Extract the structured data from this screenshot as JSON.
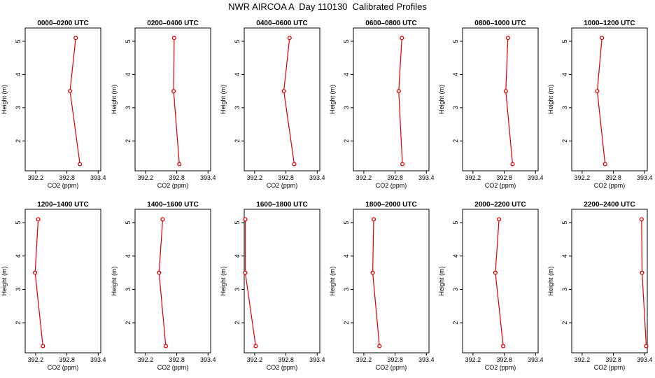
{
  "page": {
    "title": "NWR AIRCOA A  Day 110130  Calibrated Profiles"
  },
  "colors": {
    "series": "#dd0000",
    "axis": "#000000",
    "background": "#ffffff"
  },
  "chart_data": [
    {
      "type": "line",
      "title": "0000–0200 UTC",
      "xlabel": "CO2 (ppm)",
      "ylabel": "Height (m)",
      "xlim": [
        392.0,
        393.45
      ],
      "ylim": [
        1.1,
        5.4
      ],
      "xticks": [
        "392.2",
        "392.8",
        "393.4"
      ],
      "xtick_values": [
        392.2,
        392.8,
        393.4
      ],
      "yticks": [
        "2",
        "3",
        "4",
        "5"
      ],
      "ytick_values": [
        2,
        3,
        4,
        5
      ],
      "series": [
        {
          "x": [
            392.97,
            392.86,
            393.05
          ],
          "y": [
            5.1,
            3.5,
            1.3
          ]
        }
      ]
    },
    {
      "type": "line",
      "title": "0200–0400 UTC",
      "xlabel": "CO2 (ppm)",
      "ylabel": "Height (m)",
      "xlim": [
        392.0,
        393.45
      ],
      "ylim": [
        1.1,
        5.4
      ],
      "xticks": [
        "392.2",
        "392.8",
        "393.4"
      ],
      "xtick_values": [
        392.2,
        392.8,
        393.4
      ],
      "yticks": [
        "2",
        "3",
        "4",
        "5"
      ],
      "ytick_values": [
        2,
        3,
        4,
        5
      ],
      "series": [
        {
          "x": [
            392.75,
            392.74,
            392.85
          ],
          "y": [
            5.1,
            3.5,
            1.3
          ]
        }
      ]
    },
    {
      "type": "line",
      "title": "0400–0600 UTC",
      "xlabel": "CO2 (ppm)",
      "ylabel": "Height (m)",
      "xlim": [
        392.0,
        393.45
      ],
      "ylim": [
        1.1,
        5.4
      ],
      "xticks": [
        "392.2",
        "392.8",
        "393.4"
      ],
      "xtick_values": [
        392.2,
        392.8,
        393.4
      ],
      "yticks": [
        "2",
        "3",
        "4",
        "5"
      ],
      "ytick_values": [
        2,
        3,
        4,
        5
      ],
      "series": [
        {
          "x": [
            392.87,
            392.76,
            392.96
          ],
          "y": [
            5.1,
            3.5,
            1.3
          ]
        }
      ]
    },
    {
      "type": "line",
      "title": "0600–0800 UTC",
      "xlabel": "CO2 (ppm)",
      "ylabel": "Height (m)",
      "xlim": [
        392.0,
        393.45
      ],
      "ylim": [
        1.1,
        5.4
      ],
      "xticks": [
        "392.2",
        "392.8",
        "393.4"
      ],
      "xtick_values": [
        392.2,
        392.8,
        393.4
      ],
      "yticks": [
        "2",
        "3",
        "4",
        "5"
      ],
      "ytick_values": [
        2,
        3,
        4,
        5
      ],
      "series": [
        {
          "x": [
            392.93,
            392.87,
            392.94
          ],
          "y": [
            5.1,
            3.5,
            1.3
          ]
        }
      ]
    },
    {
      "type": "line",
      "title": "0800–1000 UTC",
      "xlabel": "CO2 (ppm)",
      "ylabel": "Height (m)",
      "xlim": [
        392.0,
        393.45
      ],
      "ylim": [
        1.1,
        5.4
      ],
      "xticks": [
        "392.2",
        "392.8",
        "393.4"
      ],
      "xtick_values": [
        392.2,
        392.8,
        393.4
      ],
      "yticks": [
        "2",
        "3",
        "4",
        "5"
      ],
      "ytick_values": [
        2,
        3,
        4,
        5
      ],
      "series": [
        {
          "x": [
            392.87,
            392.83,
            392.96
          ],
          "y": [
            5.1,
            3.5,
            1.3
          ]
        }
      ]
    },
    {
      "type": "line",
      "title": "1000–1200 UTC",
      "xlabel": "CO2 (ppm)",
      "ylabel": "Height (m)",
      "xlim": [
        392.0,
        393.45
      ],
      "ylim": [
        1.1,
        5.4
      ],
      "xticks": [
        "392.2",
        "392.8",
        "393.4"
      ],
      "xtick_values": [
        392.2,
        392.8,
        393.4
      ],
      "yticks": [
        "2",
        "3",
        "4",
        "5"
      ],
      "ytick_values": [
        2,
        3,
        4,
        5
      ],
      "series": [
        {
          "x": [
            392.58,
            392.49,
            392.64
          ],
          "y": [
            5.1,
            3.5,
            1.3
          ]
        }
      ]
    },
    {
      "type": "line",
      "title": "1200–1400 UTC",
      "xlabel": "CO2 (ppm)",
      "ylabel": "Height (m)",
      "xlim": [
        392.0,
        393.45
      ],
      "ylim": [
        1.1,
        5.4
      ],
      "xticks": [
        "392.2",
        "392.8",
        "393.4"
      ],
      "xtick_values": [
        392.2,
        392.8,
        393.4
      ],
      "yticks": [
        "2",
        "3",
        "4",
        "5"
      ],
      "ytick_values": [
        2,
        3,
        4,
        5
      ],
      "series": [
        {
          "x": [
            392.25,
            392.19,
            392.34
          ],
          "y": [
            5.1,
            3.5,
            1.3
          ]
        }
      ]
    },
    {
      "type": "line",
      "title": "1400–1600 UTC",
      "xlabel": "CO2 (ppm)",
      "ylabel": "Height (m)",
      "xlim": [
        392.0,
        393.45
      ],
      "ylim": [
        1.1,
        5.4
      ],
      "xticks": [
        "392.2",
        "392.8",
        "393.4"
      ],
      "xtick_values": [
        392.2,
        392.8,
        393.4
      ],
      "yticks": [
        "2",
        "3",
        "4",
        "5"
      ],
      "ytick_values": [
        2,
        3,
        4,
        5
      ],
      "series": [
        {
          "x": [
            392.53,
            392.46,
            392.59
          ],
          "y": [
            5.1,
            3.5,
            1.3
          ]
        }
      ]
    },
    {
      "type": "line",
      "title": "1600–1800 UTC",
      "xlabel": "CO2 (ppm)",
      "ylabel": "Height (m)",
      "xlim": [
        392.0,
        393.45
      ],
      "ylim": [
        1.1,
        5.4
      ],
      "xticks": [
        "392.2",
        "392.8",
        "393.4"
      ],
      "xtick_values": [
        392.2,
        392.8,
        393.4
      ],
      "yticks": [
        "2",
        "3",
        "4",
        "5"
      ],
      "ytick_values": [
        2,
        3,
        4,
        5
      ],
      "series": [
        {
          "x": [
            392.02,
            392.02,
            392.22
          ],
          "y": [
            5.1,
            3.5,
            1.3
          ]
        }
      ]
    },
    {
      "type": "line",
      "title": "1800–2000 UTC",
      "xlabel": "CO2 (ppm)",
      "ylabel": "Height (m)",
      "xlim": [
        392.0,
        393.45
      ],
      "ylim": [
        1.1,
        5.4
      ],
      "xticks": [
        "392.2",
        "392.8",
        "393.4"
      ],
      "xtick_values": [
        392.2,
        392.8,
        393.4
      ],
      "yticks": [
        "2",
        "3",
        "4",
        "5"
      ],
      "ytick_values": [
        2,
        3,
        4,
        5
      ],
      "series": [
        {
          "x": [
            392.39,
            392.37,
            392.5
          ],
          "y": [
            5.1,
            3.5,
            1.3
          ]
        }
      ]
    },
    {
      "type": "line",
      "title": "2000–2200 UTC",
      "xlabel": "CO2 (ppm)",
      "ylabel": "Height (m)",
      "xlim": [
        392.0,
        393.45
      ],
      "ylim": [
        1.1,
        5.4
      ],
      "xticks": [
        "392.2",
        "392.8",
        "393.4"
      ],
      "xtick_values": [
        392.2,
        392.8,
        393.4
      ],
      "yticks": [
        "2",
        "3",
        "4",
        "5"
      ],
      "ytick_values": [
        2,
        3,
        4,
        5
      ],
      "series": [
        {
          "x": [
            392.7,
            392.63,
            392.78
          ],
          "y": [
            5.1,
            3.5,
            1.3
          ]
        }
      ]
    },
    {
      "type": "line",
      "title": "2200–2400 UTC",
      "xlabel": "CO2 (ppm)",
      "ylabel": "Height (m)",
      "xlim": [
        392.0,
        393.45
      ],
      "ylim": [
        1.1,
        5.4
      ],
      "xticks": [
        "392.2",
        "392.8",
        "393.4"
      ],
      "xtick_values": [
        392.2,
        392.8,
        393.4
      ],
      "yticks": [
        "2",
        "3",
        "4",
        "5"
      ],
      "ytick_values": [
        2,
        3,
        4,
        5
      ],
      "series": [
        {
          "x": [
            393.34,
            393.35,
            393.43
          ],
          "y": [
            5.1,
            3.5,
            1.3
          ]
        }
      ]
    }
  ]
}
